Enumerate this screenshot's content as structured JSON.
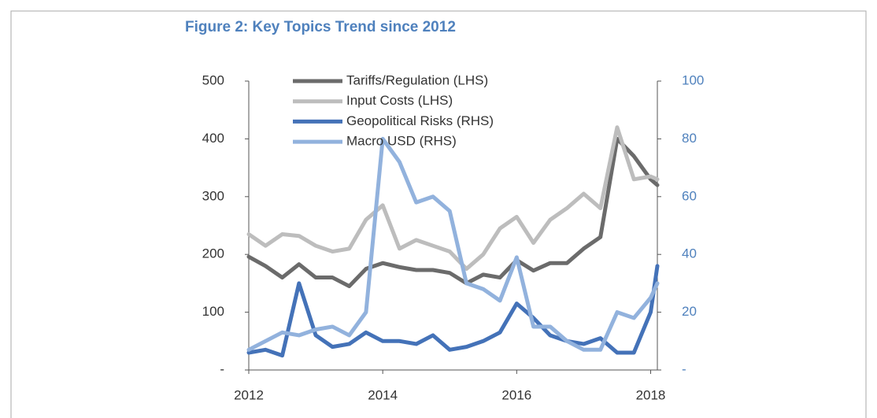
{
  "chart_data": {
    "type": "line",
    "title": "Figure 2: Key Topics Trend since 2012",
    "x": [
      2012,
      2012.25,
      2012.5,
      2012.75,
      2013,
      2013.25,
      2013.5,
      2013.75,
      2014,
      2014.25,
      2014.5,
      2014.75,
      2015,
      2015.25,
      2015.5,
      2015.75,
      2016,
      2016.25,
      2016.5,
      2016.75,
      2017,
      2017.25,
      2017.5,
      2017.75,
      2018,
      2018.1
    ],
    "series": [
      {
        "name": "Tariffs/Regulation (LHS)",
        "color": "#6b6b6b",
        "values": [
          196,
          180,
          160,
          183,
          160,
          160,
          145,
          175,
          185,
          178,
          173,
          173,
          168,
          150,
          165,
          160,
          190,
          172,
          185,
          185,
          210,
          230,
          400,
          370,
          330,
          320
        ]
      },
      {
        "name": "Input Costs (LHS)",
        "color": "#bdbdbd",
        "values": [
          235,
          215,
          235,
          232,
          215,
          205,
          210,
          260,
          285,
          210,
          225,
          215,
          205,
          175,
          200,
          245,
          265,
          220,
          260,
          280,
          305,
          280,
          420,
          330,
          335,
          330
        ]
      },
      {
        "name": "Geopolitical Risks (RHS)",
        "color": "#4472b8",
        "axis": "y2",
        "values": [
          6,
          7,
          5,
          30,
          12,
          8,
          9,
          13,
          10,
          10,
          9,
          12,
          7,
          8,
          10,
          13,
          23,
          18,
          12,
          10,
          9,
          11,
          6,
          6,
          20,
          36
        ]
      },
      {
        "name": "Macro USD (RHS)",
        "color": "#92b2dd",
        "axis": "y2",
        "values": [
          7,
          10,
          13,
          12,
          14,
          15,
          12,
          20,
          80,
          72,
          58,
          60,
          55,
          30,
          28,
          24,
          39,
          15,
          15,
          10,
          7,
          7,
          20,
          18,
          25,
          30
        ]
      }
    ],
    "xlim": [
      2012,
      2018.1
    ],
    "xticks": [
      2012,
      2014,
      2016,
      2018
    ],
    "ylim": [
      0,
      500
    ],
    "yticks": [
      {
        "value": 0,
        "label": "-"
      },
      100,
      200,
      300,
      400,
      500
    ],
    "y2lim": [
      0,
      100
    ],
    "y2ticks": [
      {
        "value": 0,
        "label": "-"
      },
      20,
      40,
      60,
      80,
      100
    ],
    "legend": "upper left"
  }
}
